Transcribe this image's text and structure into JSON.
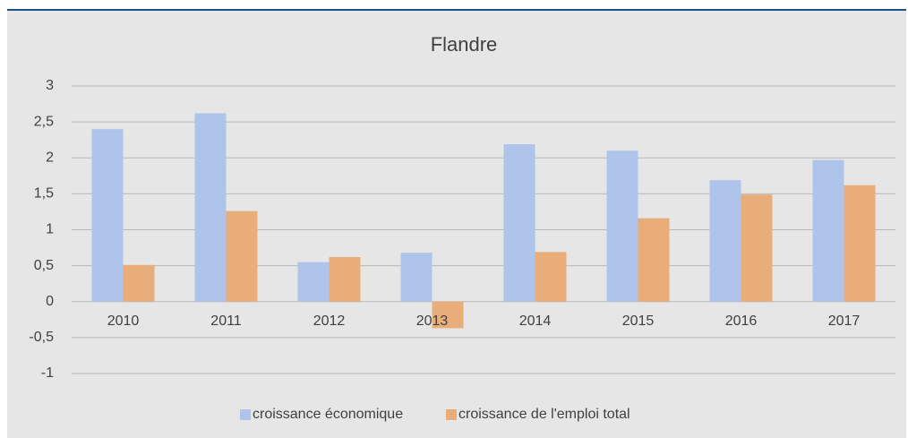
{
  "chart_data": {
    "type": "bar",
    "title": "Flandre",
    "categories": [
      "2010",
      "2011",
      "2012",
      "2013",
      "2014",
      "2015",
      "2016",
      "2017"
    ],
    "series": [
      {
        "name": "croissance économique",
        "color": "#aec4ea",
        "values": [
          2.4,
          2.62,
          0.55,
          0.68,
          2.19,
          2.1,
          1.69,
          1.97
        ]
      },
      {
        "name": "croissance de l'emploi total",
        "color": "#e8ad78",
        "values": [
          0.51,
          1.26,
          0.62,
          -0.37,
          0.69,
          1.16,
          1.49,
          1.62
        ]
      }
    ],
    "ylim": [
      -1,
      3
    ],
    "yticks": [
      -1,
      {
        "value": -0.5,
        "label": "-0,5"
      },
      0,
      {
        "value": 0.5,
        "label": "0,5"
      },
      1,
      {
        "value": 1.5,
        "label": "1,5"
      },
      2,
      {
        "value": 2.5,
        "label": "2,5"
      },
      3
    ],
    "grid": true,
    "legend": "bottom"
  }
}
